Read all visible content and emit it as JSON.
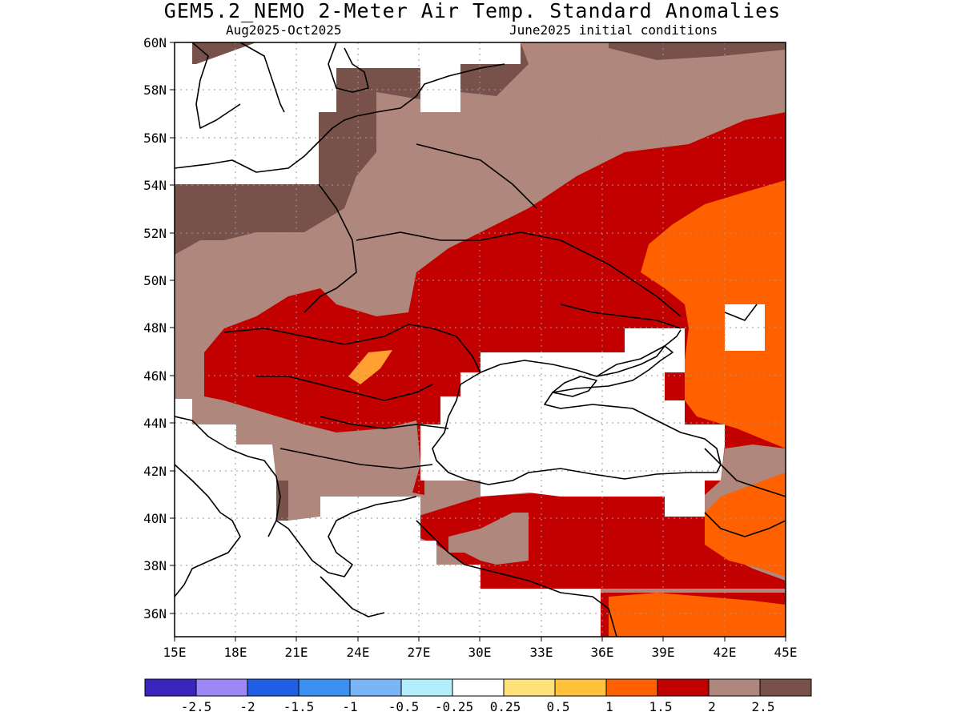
{
  "title": "GEM5.2_NEMO 2-Meter Air Temp. Standard Anomalies",
  "subtitle_left": "Aug2025-Oct2025",
  "subtitle_right": "June2025 initial conditions",
  "map": {
    "lon_range": [
      15,
      45
    ],
    "lat_range": [
      35,
      60
    ],
    "lon_ticks": [
      "15E",
      "18E",
      "21E",
      "24E",
      "27E",
      "30E",
      "33E",
      "36E",
      "39E",
      "42E",
      "45E"
    ],
    "lat_ticks": [
      "60N",
      "58N",
      "56N",
      "54N",
      "52N",
      "50N",
      "48N",
      "46N",
      "44N",
      "42N",
      "40N",
      "38N",
      "36N"
    ],
    "grid": true
  },
  "colorbar": {
    "colors": [
      "#3a26bf",
      "#9d86f5",
      "#1f5fe6",
      "#3b8ff0",
      "#79b6f8",
      "#b3eefc",
      "#ffffff",
      "#ffe27a",
      "#ffc23a",
      "#ff6000",
      "#c20000",
      "#b0877c",
      "#78524a"
    ],
    "labels": [
      "-2.5",
      "-2",
      "-1.5",
      "-1",
      "-0.5",
      "-0.25",
      "0.25",
      "0.5",
      "1",
      "1.5",
      "2",
      "2.5"
    ]
  },
  "legend_classes": {
    "white": "#ffffff",
    "orange": "#ff6000",
    "red": "#c20000",
    "tan": "#b0877c",
    "brown": "#78524a",
    "light_orange": "#ffa030"
  }
}
